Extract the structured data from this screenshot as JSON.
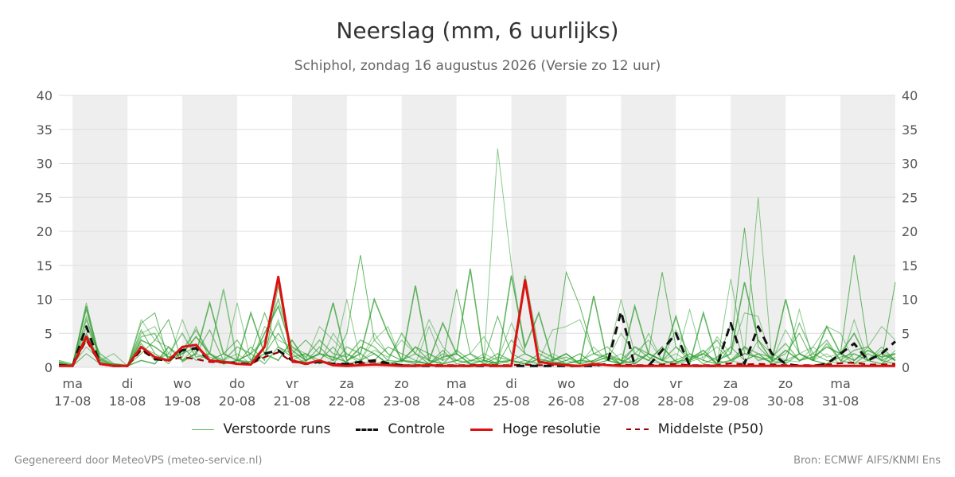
{
  "header": {
    "title": "Neerslag (mm, 6 uurlijks)",
    "subtitle": "Schiphol, zondag 16 augustus 2026 (Versie zo 12 uur)"
  },
  "footer": {
    "left": "Gegenereerd door MeteoVPS (meteo-service.nl)",
    "right": "Bron: ECMWF AIFS/KNMI Ens"
  },
  "legend": {
    "items": [
      {
        "label": "Verstoorde runs",
        "color": "#5cb85c",
        "style": "thin"
      },
      {
        "label": "Controle",
        "color": "#111111",
        "style": "dashed"
      },
      {
        "label": "Hoge resolutie",
        "color": "#dd1111",
        "style": "solid"
      },
      {
        "label": "Middelste (P50)",
        "color": "#990000",
        "style": "dashed"
      }
    ]
  },
  "chart_data": {
    "type": "line",
    "ylim": [
      0,
      40
    ],
    "yticks": [
      0,
      5,
      10,
      15,
      20,
      25,
      30,
      35,
      40
    ],
    "xlim": [
      -0.25,
      15.0
    ],
    "step_days": 0.25,
    "x_start": -0.25,
    "day_ticks": [
      {
        "x": 0,
        "day": "ma",
        "date": "17-08"
      },
      {
        "x": 1,
        "day": "di",
        "date": "18-08"
      },
      {
        "x": 2,
        "day": "wo",
        "date": "19-08"
      },
      {
        "x": 3,
        "day": "do",
        "date": "20-08"
      },
      {
        "x": 4,
        "day": "vr",
        "date": "21-08"
      },
      {
        "x": 5,
        "day": "za",
        "date": "22-08"
      },
      {
        "x": 6,
        "day": "zo",
        "date": "23-08"
      },
      {
        "x": 7,
        "day": "ma",
        "date": "24-08"
      },
      {
        "x": 8,
        "day": "di",
        "date": "25-08"
      },
      {
        "x": 9,
        "day": "wo",
        "date": "26-08"
      },
      {
        "x": 10,
        "day": "do",
        "date": "27-08"
      },
      {
        "x": 11,
        "day": "vr",
        "date": "28-08"
      },
      {
        "x": 12,
        "day": "za",
        "date": "29-08"
      },
      {
        "x": 13,
        "day": "zo",
        "date": "30-08"
      },
      {
        "x": 14,
        "day": "ma",
        "date": "31-08"
      }
    ],
    "shaded_days": [
      [
        0,
        1
      ],
      [
        2,
        3
      ],
      [
        4,
        5
      ],
      [
        6,
        7
      ],
      [
        8,
        9
      ],
      [
        10,
        11
      ],
      [
        12,
        13
      ],
      [
        14,
        15
      ]
    ],
    "series": [
      {
        "name": "Hoge resolutie",
        "color": "#dd1111",
        "values": [
          0.2,
          0.2,
          4.5,
          0.5,
          0.2,
          0.2,
          3.0,
          1.5,
          1.0,
          3.0,
          3.3,
          1.0,
          0.8,
          0.5,
          0.4,
          3.0,
          13.3,
          1.0,
          0.5,
          1.0,
          0.3,
          0.2,
          0.3,
          0.4,
          0.3,
          0.2,
          0.2,
          0.3,
          0.2,
          0.2,
          0.2,
          0.3,
          0.2,
          0.2,
          12.8,
          0.8,
          0.5,
          0.3,
          0.2,
          0.5,
          0.3,
          0.2,
          0.2,
          0.2,
          0.2,
          0.2,
          0.2,
          0.2,
          0.2,
          0.2,
          0.2,
          0.2,
          0.2,
          0.2,
          0.2,
          0.2,
          0.2,
          0.2,
          0.2,
          0.2,
          0.2,
          0.2
        ]
      },
      {
        "name": "Controle",
        "color": "#111111",
        "values": [
          0.3,
          0.2,
          6.0,
          0.5,
          0.2,
          0.2,
          2.8,
          1.2,
          1.0,
          2.5,
          2.8,
          1.0,
          0.8,
          0.6,
          0.5,
          2.0,
          2.5,
          1.0,
          0.5,
          0.8,
          0.5,
          0.5,
          0.8,
          1.0,
          0.6,
          0.3,
          0.2,
          0.2,
          0.2,
          0.2,
          0.2,
          0.2,
          0.2,
          0.2,
          0.2,
          0.2,
          0.2,
          0.2,
          0.2,
          0.2,
          0.5,
          8.2,
          0.2,
          0.2,
          2.5,
          5.0,
          0.2,
          0.2,
          0.2,
          6.5,
          0.5,
          6.0,
          2.0,
          0.5,
          0.2,
          0.2,
          0.5,
          2.0,
          3.5,
          1.0,
          2.0,
          3.8
        ]
      },
      {
        "name": "Middelste (P50)",
        "color": "#990000",
        "values": [
          0.3,
          0.2,
          4.0,
          0.5,
          0.2,
          0.2,
          2.5,
          1.2,
          1.0,
          1.5,
          1.2,
          0.8,
          0.7,
          0.6,
          0.5,
          1.5,
          2.2,
          0.8,
          0.6,
          0.8,
          0.5,
          0.4,
          0.6,
          0.8,
          0.5,
          0.3,
          0.3,
          0.4,
          0.3,
          0.3,
          0.3,
          0.4,
          0.3,
          0.3,
          0.4,
          0.3,
          0.3,
          0.2,
          0.2,
          0.3,
          0.3,
          0.4,
          0.3,
          0.3,
          0.4,
          0.5,
          0.3,
          0.3,
          0.3,
          0.6,
          0.4,
          0.5,
          0.4,
          0.3,
          0.3,
          0.3,
          0.4,
          0.6,
          0.7,
          0.4,
          0.4,
          0.5
        ]
      }
    ],
    "ensemble": {
      "name": "Verstoorde runs",
      "color": "#2e9e2e",
      "runs": [
        [
          0.8,
          0.3,
          9.0,
          1.2,
          0.3,
          0.1,
          4.0,
          3.0,
          1.5,
          2.0,
          4.5,
          2.0,
          0.5,
          1.0,
          0.8,
          5.0,
          9.0,
          2.5,
          1.0,
          2.0,
          1.5,
          0.8,
          3.0,
          2.0,
          0.5,
          1.0,
          0.8,
          0.5,
          1.5,
          2.0,
          0.5,
          0.3,
          0.8,
          1.0,
          0.5,
          1.2,
          0.8,
          0.5,
          1.0,
          0.8,
          1.5,
          0.5,
          2.0,
          1.0,
          3.0,
          0.8,
          1.2,
          2.5,
          0.5,
          1.0,
          2.0,
          1.5,
          0.8,
          2.5,
          1.0,
          1.5,
          3.0,
          2.0,
          1.0,
          2.5,
          1.5,
          2.0
        ],
        [
          0.5,
          0.2,
          7.5,
          0.8,
          0.2,
          0.2,
          5.0,
          6.0,
          2.0,
          1.0,
          3.0,
          1.5,
          1.0,
          2.0,
          0.5,
          6.0,
          4.0,
          3.0,
          2.0,
          0.5,
          5.0,
          2.0,
          1.0,
          4.0,
          6.0,
          1.0,
          0.5,
          2.0,
          0.5,
          1.0,
          0.8,
          2.0,
          1.0,
          0.5,
          1.0,
          0.5,
          2.0,
          1.0,
          0.5,
          3.0,
          1.0,
          2.0,
          0.5,
          5.0,
          1.0,
          2.0,
          0.8,
          1.5,
          3.0,
          1.0,
          0.5,
          4.0,
          2.0,
          1.0,
          0.8,
          3.0,
          1.5,
          2.0,
          0.5,
          1.0,
          2.5,
          1.0
        ],
        [
          1.0,
          0.5,
          8.5,
          0.5,
          0.3,
          0.2,
          2.0,
          4.0,
          7.0,
          0.8,
          2.0,
          5.5,
          1.0,
          0.5,
          3.0,
          1.0,
          12.0,
          1.0,
          0.8,
          3.0,
          1.0,
          2.0,
          0.5,
          1.0,
          3.0,
          2.0,
          1.0,
          0.5,
          2.5,
          0.5,
          1.0,
          1.5,
          0.5,
          1.0,
          2.0,
          1.0,
          0.5,
          1.0,
          2.0,
          0.5,
          1.0,
          0.5,
          3.0,
          1.5,
          0.5,
          1.0,
          2.0,
          0.5,
          1.5,
          3.0,
          1.0,
          2.0,
          0.5,
          1.0,
          2.0,
          1.0,
          0.5,
          1.5,
          2.0,
          1.0,
          0.5,
          1.5
        ],
        [
          0.3,
          0.2,
          6.0,
          2.0,
          0.5,
          0.3,
          3.5,
          1.0,
          2.0,
          5.0,
          1.5,
          2.0,
          11.5,
          1.0,
          2.0,
          0.5,
          3.0,
          1.5,
          2.0,
          1.0,
          0.5,
          3.0,
          2.0,
          0.5,
          1.0,
          5.0,
          2.0,
          1.0,
          0.5,
          1.0,
          2.0,
          0.5,
          1.5,
          1.0,
          0.5,
          2.0,
          1.0,
          1.5,
          0.5,
          1.0,
          2.0,
          1.0,
          0.5,
          2.0,
          1.0,
          0.5,
          1.0,
          2.0,
          1.0,
          0.5,
          3.0,
          1.0,
          1.5,
          0.5,
          2.0,
          1.0,
          3.5,
          1.0,
          0.5,
          2.0,
          1.0,
          0.5
        ],
        [
          0.6,
          0.4,
          5.0,
          1.0,
          0.2,
          0.1,
          6.5,
          8.0,
          1.0,
          2.0,
          3.0,
          1.0,
          2.0,
          4.0,
          1.0,
          2.0,
          5.0,
          2.0,
          4.0,
          2.0,
          1.0,
          5.0,
          16.5,
          4.0,
          2.0,
          1.0,
          3.0,
          2.0,
          1.0,
          11.5,
          2.0,
          1.0,
          0.5,
          4.0,
          2.0,
          1.0,
          0.5,
          14.0,
          9.0,
          2.0,
          3.0,
          1.0,
          0.5,
          2.0,
          14.0,
          3.0,
          1.0,
          2.0,
          0.5,
          3.0,
          20.5,
          3.0,
          1.0,
          2.0,
          5.0,
          1.0,
          0.5,
          2.0,
          16.5,
          3.0,
          1.0,
          12.5
        ],
        [
          0.4,
          0.3,
          9.5,
          0.8,
          0.2,
          0.2,
          3.0,
          2.0,
          1.0,
          7.0,
          2.0,
          1.0,
          0.5,
          9.5,
          1.0,
          3.0,
          6.5,
          1.0,
          2.0,
          0.5,
          1.0,
          10.0,
          1.0,
          5.0,
          2.0,
          1.0,
          0.5,
          6.0,
          1.0,
          2.0,
          0.5,
          1.0,
          32.2,
          15.0,
          2.0,
          1.0,
          0.5,
          1.0,
          2.0,
          0.5,
          1.0,
          10.0,
          2.0,
          1.0,
          0.5,
          1.0,
          8.5,
          1.0,
          0.5,
          13.0,
          2.0,
          25.0,
          1.0,
          0.5,
          8.5,
          1.0,
          2.0,
          0.5,
          7.0,
          1.0,
          0.5,
          2.5
        ],
        [
          0.2,
          0.2,
          4.0,
          0.5,
          0.5,
          0.2,
          1.0,
          0.5,
          3.0,
          1.0,
          2.0,
          9.5,
          2.0,
          1.0,
          8.0,
          2.0,
          1.0,
          4.0,
          1.0,
          2.0,
          9.5,
          1.0,
          2.0,
          10.0,
          5.0,
          1.0,
          12.0,
          1.0,
          6.5,
          2.0,
          14.5,
          1.0,
          0.5,
          13.5,
          3.0,
          8.0,
          1.0,
          2.0,
          0.5,
          10.5,
          1.0,
          0.5,
          9.0,
          2.0,
          1.0,
          7.5,
          0.5,
          8.0,
          1.0,
          2.0,
          12.5,
          4.0,
          1.0,
          10.0,
          2.0,
          1.0,
          6.0,
          2.0,
          5.0,
          1.0,
          2.0,
          1.0
        ],
        [
          0.5,
          0.3,
          3.0,
          1.0,
          2.0,
          0.2,
          7.0,
          4.0,
          3.0,
          1.5,
          6.0,
          1.0,
          2.0,
          1.0,
          0.5,
          2.0,
          7.0,
          0.8,
          1.0,
          6.0,
          4.0,
          2.0,
          1.0,
          2.5,
          1.5,
          4.0,
          2.0,
          7.0,
          3.0,
          1.0,
          2.0,
          4.5,
          1.0,
          6.5,
          2.0,
          1.0,
          5.5,
          6.0,
          7.0,
          2.0,
          1.0,
          5.0,
          2.0,
          4.0,
          1.0,
          5.5,
          2.0,
          1.0,
          4.5,
          2.0,
          8.0,
          7.5,
          1.0,
          5.5,
          2.0,
          3.0,
          6.0,
          5.0,
          1.0,
          3.0,
          6.0,
          4.0
        ],
        [
          0.7,
          0.2,
          2.0,
          0.5,
          0.2,
          0.2,
          5.5,
          2.0,
          0.5,
          3.0,
          1.0,
          2.0,
          0.5,
          1.0,
          2.0,
          8.0,
          3.0,
          2.0,
          0.5,
          1.0,
          3.0,
          0.5,
          1.0,
          2.0,
          0.5,
          1.0,
          2.0,
          0.5,
          2.0,
          1.0,
          0.5,
          1.0,
          7.5,
          2.0,
          1.0,
          0.5,
          1.0,
          2.0,
          0.5,
          1.0,
          2.0,
          0.5,
          1.0,
          2.0,
          1.0,
          0.5,
          2.0,
          1.0,
          0.5,
          6.5,
          1.0,
          2.0,
          0.5,
          1.0,
          6.5,
          2.0,
          1.0,
          0.5,
          2.0,
          1.0,
          3.0,
          1.0
        ],
        [
          0.3,
          0.4,
          7.0,
          1.5,
          0.3,
          0.2,
          4.5,
          5.0,
          1.0,
          2.5,
          5.5,
          2.0,
          1.0,
          3.0,
          2.0,
          4.0,
          10.0,
          3.0,
          1.5,
          4.0,
          2.0,
          1.5,
          4.0,
          3.0,
          1.0,
          0.8,
          3.0,
          1.0,
          0.5,
          2.5,
          1.0,
          0.8,
          2.0,
          1.0,
          13.5,
          2.5,
          1.5,
          0.5,
          1.0,
          2.0,
          1.5,
          1.0,
          3.0,
          2.0,
          1.0,
          3.0,
          1.5,
          2.0,
          4.0,
          1.0,
          3.0,
          2.0,
          1.5,
          3.5,
          1.0,
          2.0,
          4.0,
          1.0,
          2.5,
          3.0,
          1.0,
          2.0
        ]
      ]
    }
  }
}
